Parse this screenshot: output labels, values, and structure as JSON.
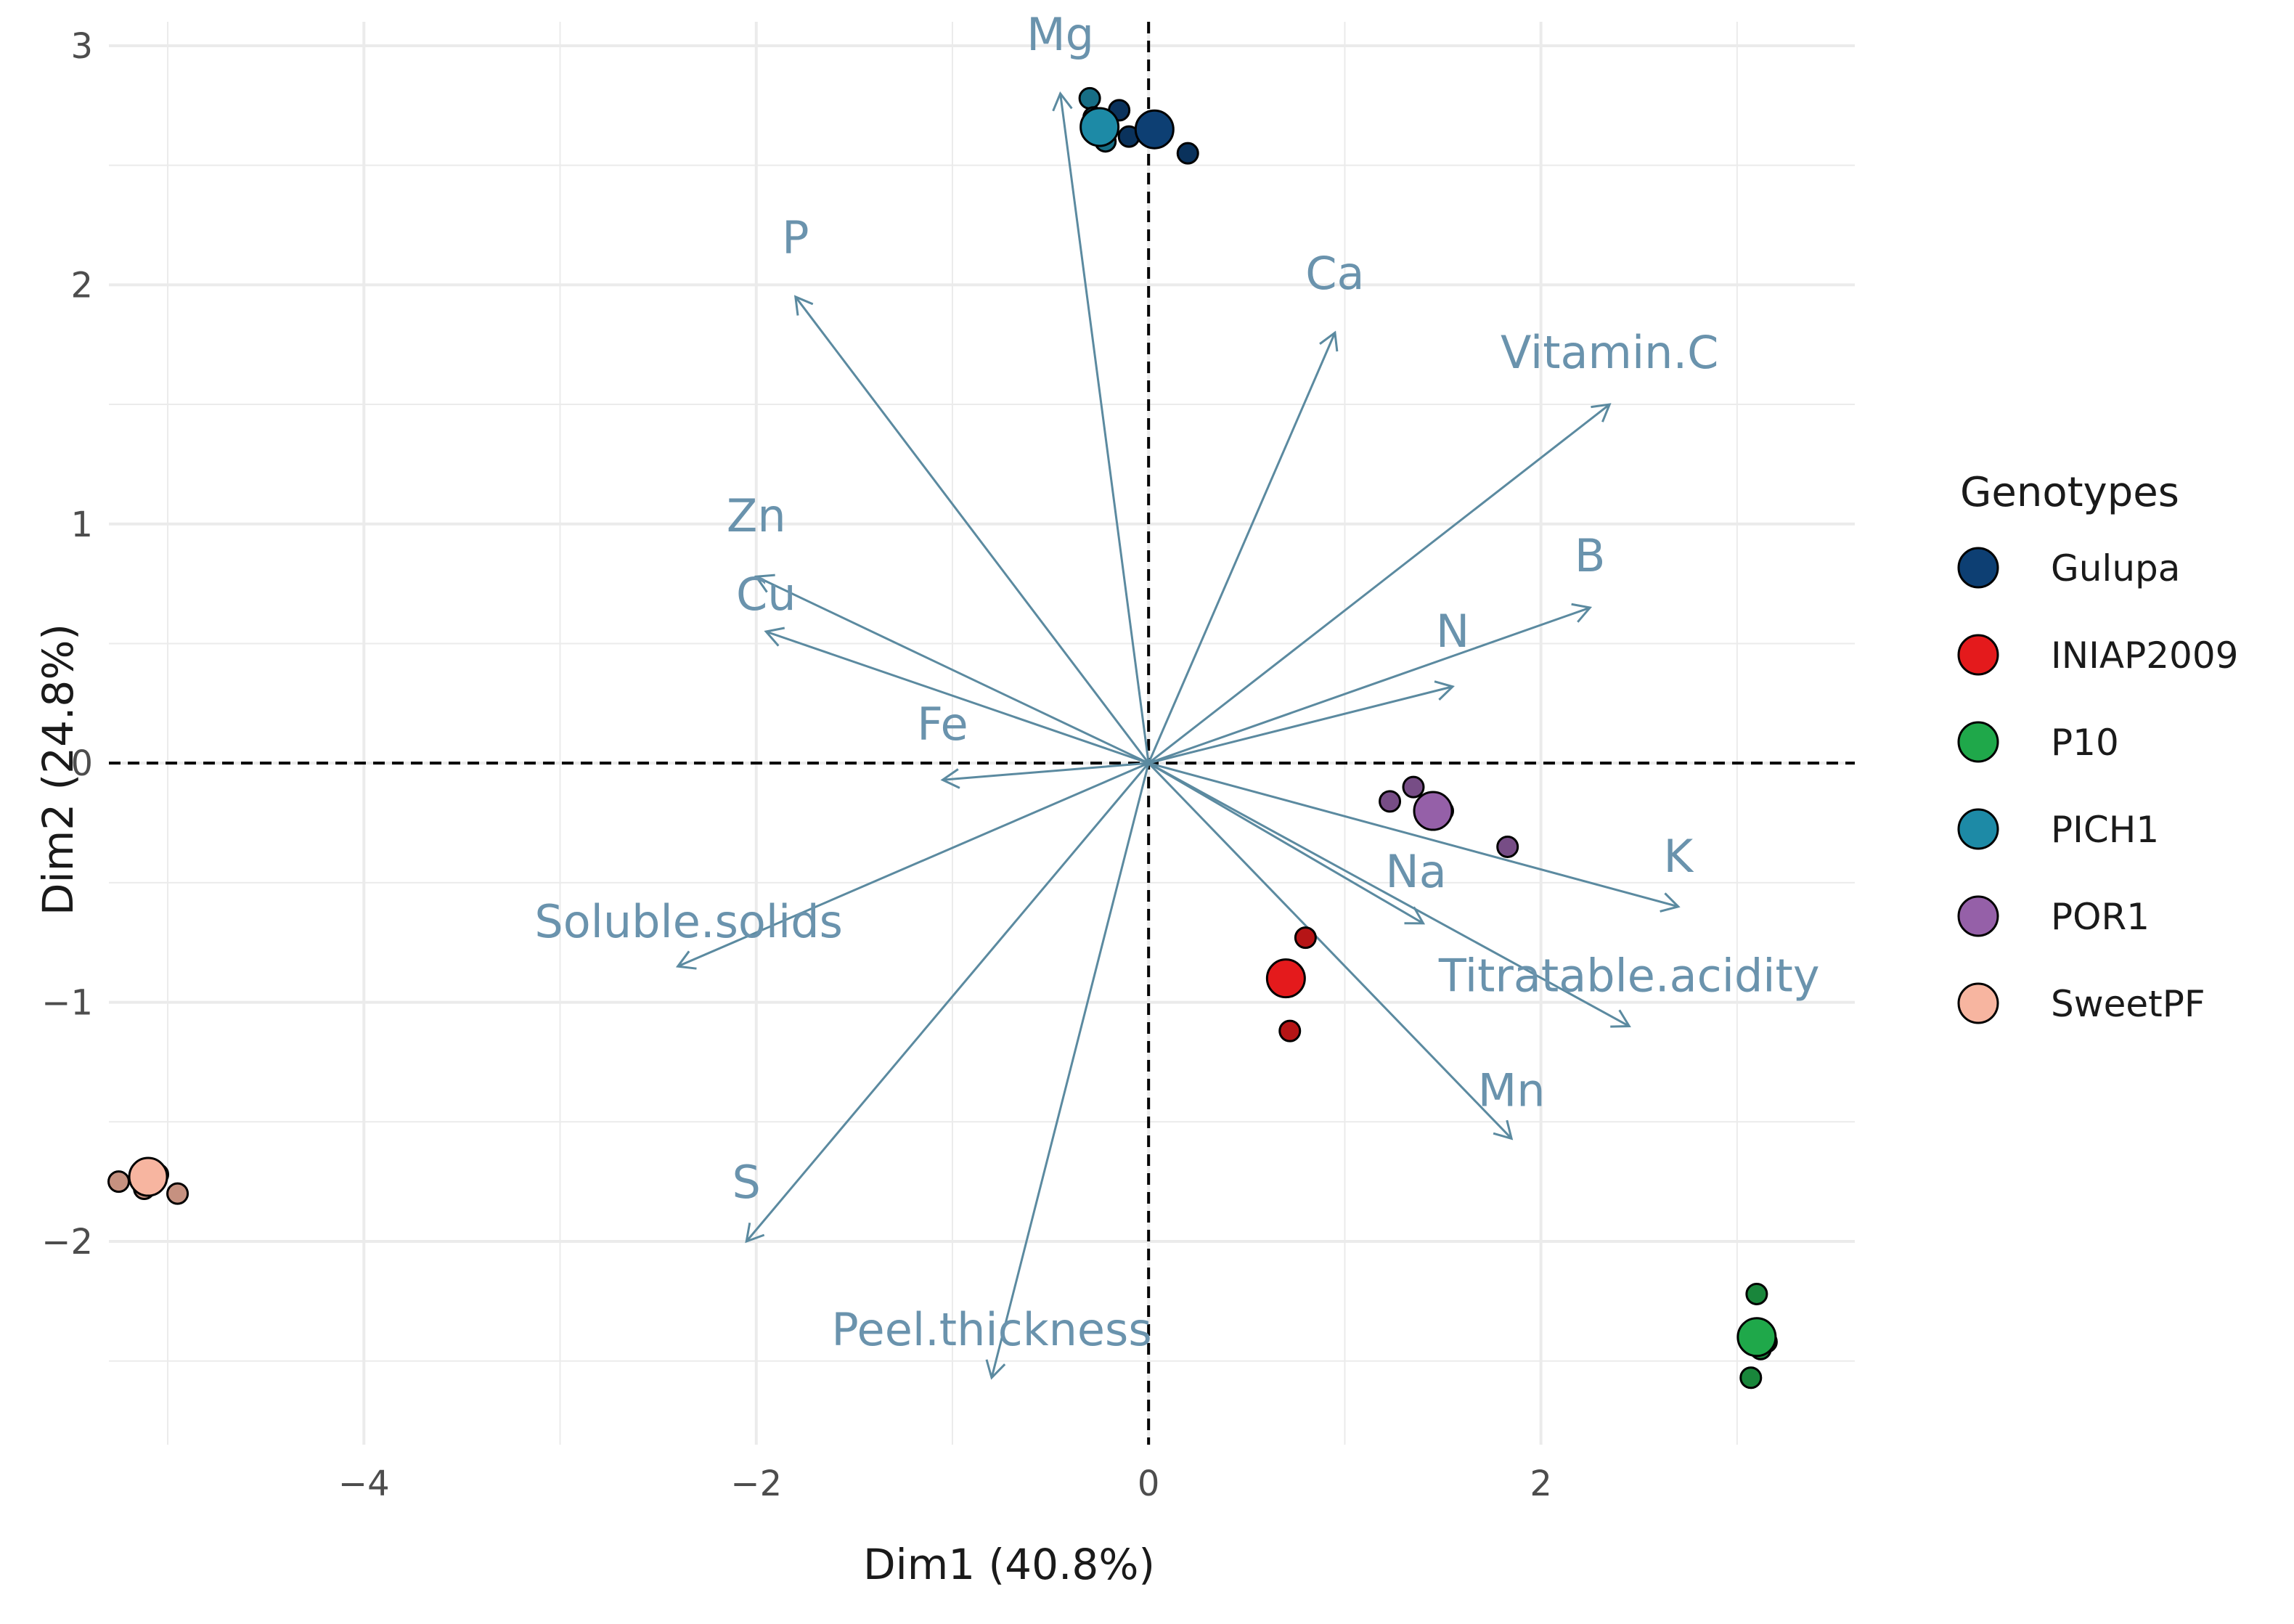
{
  "chart_data": {
    "type": "scatter",
    "subtype": "pca-biplot",
    "xlabel": "Dim1 (40.8%)",
    "ylabel": "Dim2 (24.8%)",
    "xlim": [
      -5.3,
      3.6
    ],
    "ylim": [
      -2.85,
      3.1
    ],
    "xticks": [
      -4,
      -2,
      0,
      2
    ],
    "yticks": [
      -2,
      -1,
      0,
      1,
      2,
      3
    ],
    "xtick_labels": [
      "−4",
      "−2",
      "0",
      "2"
    ],
    "ytick_labels": [
      "−2",
      "−1",
      "0",
      "1",
      "2",
      "3"
    ],
    "grid": true,
    "reference_lines": {
      "x": 0,
      "y": 0,
      "style": "dashed"
    },
    "arrow_color": "#5b8aa0",
    "variables": [
      {
        "name": "Mg",
        "x": -0.45,
        "y": 2.8
      },
      {
        "name": "P",
        "x": -1.8,
        "y": 1.95
      },
      {
        "name": "Ca",
        "x": 0.95,
        "y": 1.8
      },
      {
        "name": "Vitamin.C",
        "x": 2.35,
        "y": 1.5
      },
      {
        "name": "Zn",
        "x": -2.0,
        "y": 0.78
      },
      {
        "name": "Cu",
        "x": -1.95,
        "y": 0.55
      },
      {
        "name": "B",
        "x": 2.25,
        "y": 0.65
      },
      {
        "name": "N",
        "x": 1.55,
        "y": 0.32
      },
      {
        "name": "Fe",
        "x": -1.05,
        "y": -0.07
      },
      {
        "name": "Soluble.solids",
        "x": -2.4,
        "y": -0.85
      },
      {
        "name": "Na",
        "x": 1.4,
        "y": -0.67
      },
      {
        "name": "K",
        "x": 2.7,
        "y": -0.6
      },
      {
        "name": "Titratable.acidity",
        "x": 2.45,
        "y": -1.1
      },
      {
        "name": "Mn",
        "x": 1.85,
        "y": -1.57
      },
      {
        "name": "S",
        "x": -2.05,
        "y": -2.0
      },
      {
        "name": "Peel.thickness",
        "x": -0.8,
        "y": -2.57
      }
    ],
    "legend_title": "Genotypes",
    "legend_position": "right",
    "groups": [
      {
        "name": "Gulupa",
        "color": "#0d3f73",
        "centroid": [
          0.03,
          2.65
        ],
        "points": [
          [
            -0.15,
            2.73
          ],
          [
            0.05,
            2.68
          ],
          [
            0.2,
            2.55
          ],
          [
            -0.1,
            2.62
          ]
        ]
      },
      {
        "name": "INIAP2009",
        "color": "#e41a1c",
        "centroid": [
          0.7,
          -0.9
        ],
        "points": [
          [
            0.8,
            -0.73
          ],
          [
            0.72,
            -1.12
          ],
          [
            0.68,
            -0.88
          ]
        ]
      },
      {
        "name": "P10",
        "color": "#1fa84a",
        "centroid": [
          3.1,
          -2.4
        ],
        "points": [
          [
            3.1,
            -2.22
          ],
          [
            3.12,
            -2.45
          ],
          [
            3.07,
            -2.57
          ],
          [
            3.15,
            -2.42
          ]
        ]
      },
      {
        "name": "PICH1",
        "color": "#1d8aa6",
        "centroid": [
          -0.25,
          2.66
        ],
        "points": [
          [
            -0.3,
            2.78
          ],
          [
            -0.22,
            2.6
          ],
          [
            -0.28,
            2.7
          ]
        ]
      },
      {
        "name": "POR1",
        "color": "#9560a8",
        "centroid": [
          1.45,
          -0.2
        ],
        "points": [
          [
            1.23,
            -0.16
          ],
          [
            1.35,
            -0.1
          ],
          [
            1.5,
            -0.2
          ],
          [
            1.83,
            -0.35
          ]
        ]
      },
      {
        "name": "SweetPF",
        "color": "#f7b5a0",
        "centroid": [
          -5.1,
          -1.73
        ],
        "points": [
          [
            -5.25,
            -1.75
          ],
          [
            -5.05,
            -1.72
          ],
          [
            -4.95,
            -1.8
          ],
          [
            -5.12,
            -1.78
          ]
        ]
      }
    ]
  }
}
